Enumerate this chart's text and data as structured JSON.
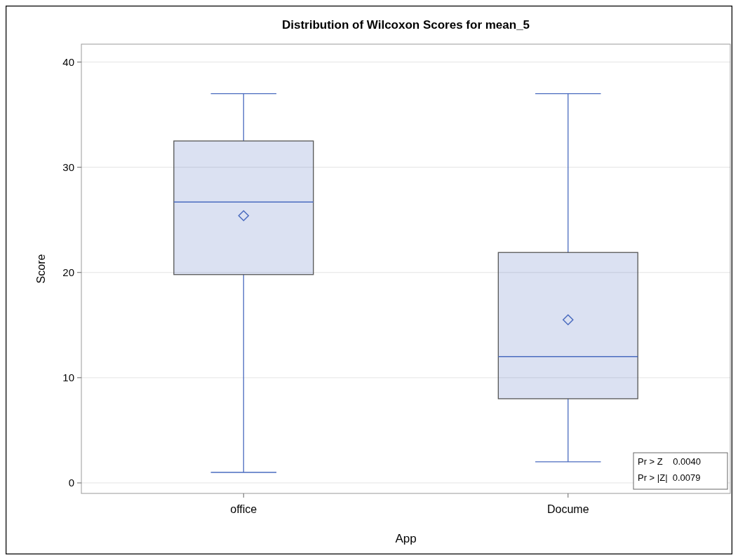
{
  "chart_data": {
    "type": "box",
    "title": "Distribution of Wilcoxon Scores for mean_5",
    "xlabel": "App",
    "ylabel": "Score",
    "categories": [
      "office",
      "Docume"
    ],
    "boxes": [
      {
        "low": 1,
        "q1": 19.8,
        "median": 26.7,
        "q3": 32.5,
        "high": 37,
        "mean": 25.4
      },
      {
        "low": 2,
        "q1": 8,
        "median": 12,
        "q3": 21.9,
        "high": 37,
        "mean": 15.5
      }
    ],
    "color": "#4a6bbf",
    "ylim": [
      -1,
      41.7
    ],
    "yticks": [
      0,
      10,
      20,
      30,
      40
    ],
    "grid": "y",
    "marker": "diamond",
    "annotations": [
      "Pr > Z    0.0040",
      "Pr > |Z|  0.0079"
    ]
  }
}
